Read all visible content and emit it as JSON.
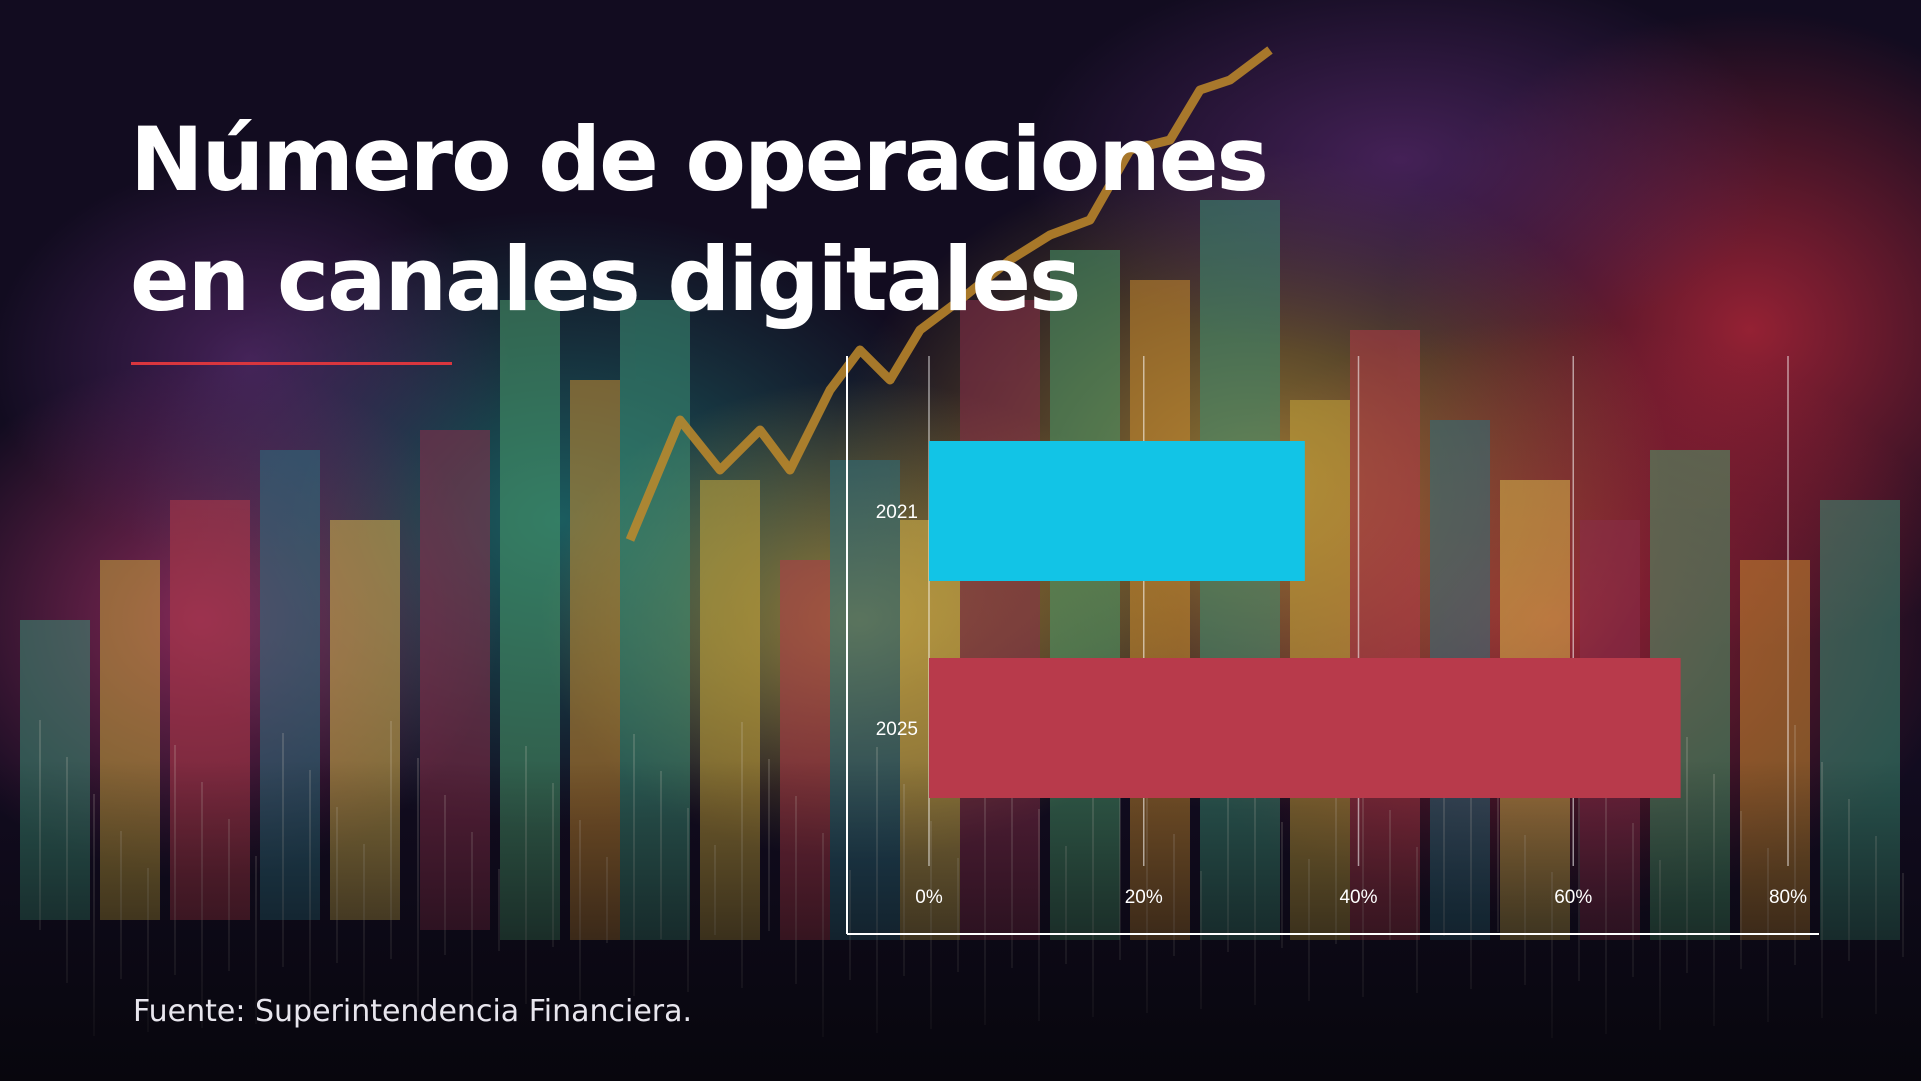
{
  "slide": {
    "title_line1": "Número de operaciones",
    "title_line2": "en canales digitales",
    "source": "Fuente: Superintendencia Financiera."
  },
  "colors": {
    "accent_line": "#d9363e",
    "bar_2021": "#12c4e6",
    "bar_2025": "#b83a4b"
  },
  "chart_data": {
    "type": "bar",
    "orientation": "horizontal",
    "categories": [
      "2021",
      "2025"
    ],
    "values": [
      35,
      70
    ],
    "value_unit": "%",
    "xlim": [
      0,
      80
    ],
    "xticks": [
      "0%",
      "20%",
      "40%",
      "60%",
      "80%"
    ],
    "grid": true,
    "legend": "none"
  }
}
